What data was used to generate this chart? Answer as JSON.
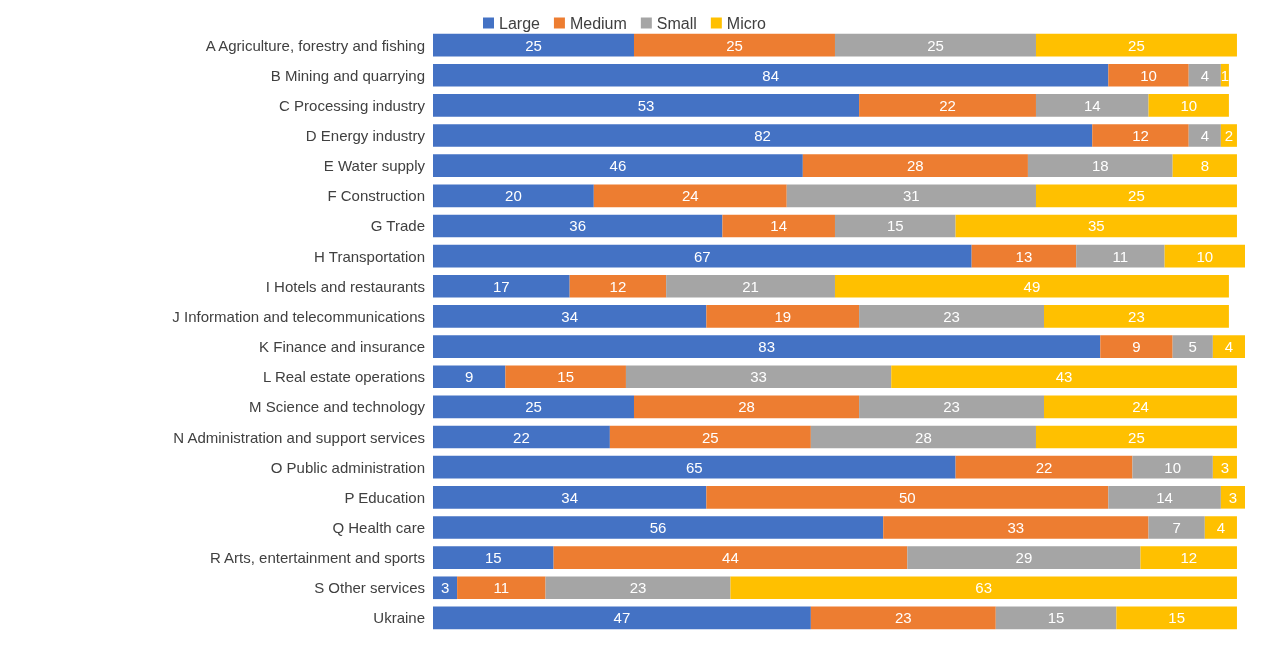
{
  "chart_data": {
    "type": "bar",
    "orientation": "horizontal",
    "stacked": true,
    "data_labels": true,
    "legend": "top",
    "categories": [
      "A Agriculture, forestry and fishing",
      "B Mining and quarrying",
      "C Processing industry",
      "D Energy industry",
      "E Water supply",
      "F Construction",
      "G Trade",
      "H Transportation",
      "I Hotels and restaurants",
      "J Information and telecommunications",
      "K Finance and insurance",
      "L Real estate operations",
      "M Science and technology",
      "N Administration and support services",
      "O Public administration",
      "P Education",
      "Q Health care",
      "R Arts, entertainment and sports",
      "S Other services",
      "Ukraine"
    ],
    "series": [
      {
        "name": "Large",
        "color": "#4472c4",
        "values": [
          25,
          84,
          53,
          82,
          46,
          20,
          36,
          67,
          17,
          34,
          83,
          9,
          25,
          22,
          65,
          34,
          56,
          15,
          3,
          47
        ]
      },
      {
        "name": "Medium",
        "color": "#ed7d31",
        "values": [
          25,
          10,
          22,
          12,
          28,
          24,
          14,
          13,
          12,
          19,
          9,
          15,
          28,
          25,
          22,
          50,
          33,
          44,
          11,
          23
        ]
      },
      {
        "name": "Small",
        "color": "#a5a5a5",
        "values": [
          25,
          4,
          14,
          4,
          18,
          31,
          15,
          11,
          21,
          23,
          5,
          33,
          23,
          28,
          10,
          14,
          7,
          29,
          23,
          15
        ]
      },
      {
        "name": "Micro",
        "color": "#ffc000",
        "values": [
          25,
          1,
          10,
          2,
          8,
          25,
          35,
          10,
          49,
          23,
          4,
          43,
          24,
          25,
          3,
          3,
          4,
          12,
          63,
          15
        ]
      }
    ]
  }
}
